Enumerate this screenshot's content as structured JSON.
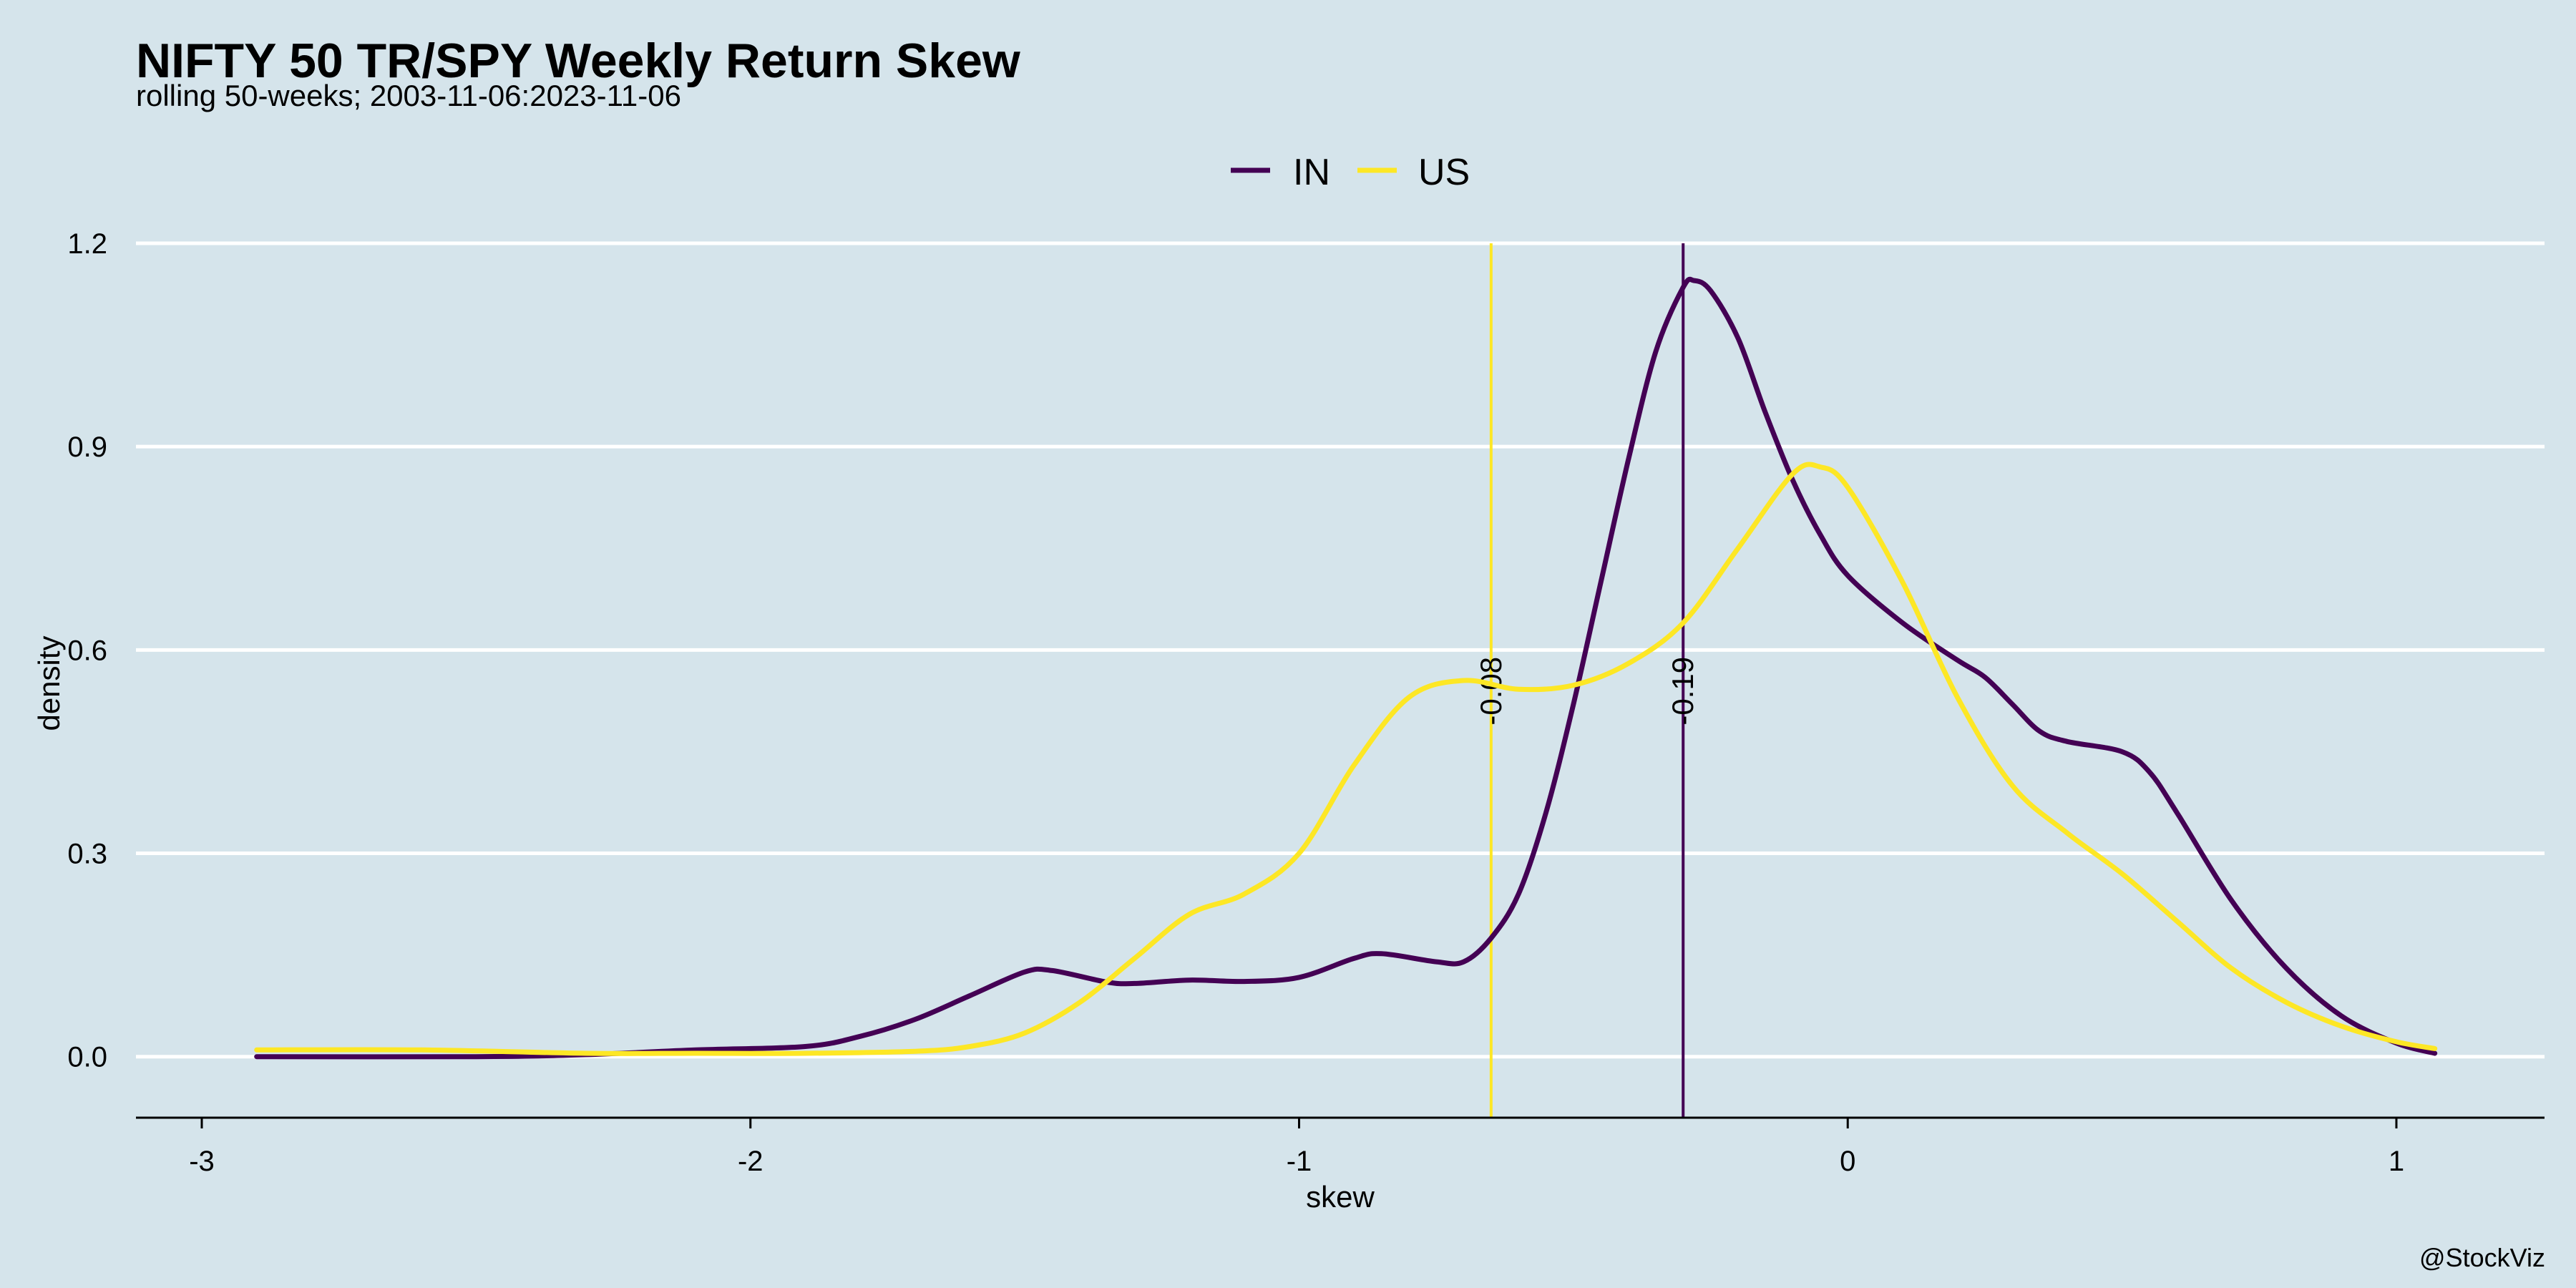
{
  "chart_data": {
    "type": "line",
    "title": "NIFTY 50 TR/SPY Weekly Return Skew",
    "subtitle": "rolling 50-weeks; 2003-11-06:2023-11-06",
    "xlabel": "skew",
    "ylabel": "density",
    "caption": "@StockViz",
    "xlim": [
      -3.12,
      1.27
    ],
    "ylim": [
      -0.09,
      1.2
    ],
    "x_ticks": [
      -3,
      -2,
      -1,
      0,
      1
    ],
    "y_ticks": [
      0.0,
      0.3,
      0.6,
      0.9,
      1.2
    ],
    "x_tick_labels": [
      "-3",
      "-2",
      "-1",
      "0",
      "1"
    ],
    "y_tick_labels": [
      "0.0",
      "0.3",
      "0.6",
      "0.9",
      "1.2"
    ],
    "grid": "horizontal",
    "legend_position": "top",
    "legend": [
      {
        "name": "IN",
        "color": "#440154"
      },
      {
        "name": "US",
        "color": "#fde725"
      }
    ],
    "series": [
      {
        "name": "IN",
        "color": "#440154",
        "points": [
          [
            -2.9,
            0.0
          ],
          [
            -2.5,
            0.0
          ],
          [
            -2.3,
            0.003
          ],
          [
            -2.1,
            0.01
          ],
          [
            -1.9,
            0.015
          ],
          [
            -1.8,
            0.03
          ],
          [
            -1.7,
            0.055
          ],
          [
            -1.6,
            0.09
          ],
          [
            -1.5,
            0.125
          ],
          [
            -1.45,
            0.127
          ],
          [
            -1.35,
            0.11
          ],
          [
            -1.3,
            0.108
          ],
          [
            -1.2,
            0.113
          ],
          [
            -1.1,
            0.111
          ],
          [
            -1.0,
            0.117
          ],
          [
            -0.9,
            0.145
          ],
          [
            -0.85,
            0.152
          ],
          [
            -0.75,
            0.14
          ],
          [
            -0.7,
            0.14
          ],
          [
            -0.65,
            0.175
          ],
          [
            -0.6,
            0.24
          ],
          [
            -0.55,
            0.36
          ],
          [
            -0.5,
            0.52
          ],
          [
            -0.45,
            0.7
          ],
          [
            -0.4,
            0.88
          ],
          [
            -0.35,
            1.04
          ],
          [
            -0.3,
            1.135
          ],
          [
            -0.28,
            1.145
          ],
          [
            -0.25,
            1.13
          ],
          [
            -0.2,
            1.06
          ],
          [
            -0.15,
            0.95
          ],
          [
            -0.1,
            0.85
          ],
          [
            -0.05,
            0.77
          ],
          [
            0.0,
            0.71
          ],
          [
            0.1,
            0.64
          ],
          [
            0.2,
            0.585
          ],
          [
            0.25,
            0.56
          ],
          [
            0.3,
            0.52
          ],
          [
            0.35,
            0.48
          ],
          [
            0.4,
            0.465
          ],
          [
            0.5,
            0.45
          ],
          [
            0.55,
            0.42
          ],
          [
            0.6,
            0.36
          ],
          [
            0.7,
            0.23
          ],
          [
            0.8,
            0.13
          ],
          [
            0.9,
            0.06
          ],
          [
            1.0,
            0.02
          ],
          [
            1.07,
            0.005
          ]
        ],
        "marker": {
          "x": -0.3,
          "label": "-0.19"
        }
      },
      {
        "name": "US",
        "color": "#fde725",
        "points": [
          [
            -2.9,
            0.01
          ],
          [
            -2.6,
            0.01
          ],
          [
            -2.3,
            0.005
          ],
          [
            -2.1,
            0.005
          ],
          [
            -1.9,
            0.005
          ],
          [
            -1.7,
            0.008
          ],
          [
            -1.6,
            0.015
          ],
          [
            -1.5,
            0.035
          ],
          [
            -1.4,
            0.08
          ],
          [
            -1.3,
            0.145
          ],
          [
            -1.2,
            0.21
          ],
          [
            -1.1,
            0.24
          ],
          [
            -1.0,
            0.3
          ],
          [
            -0.9,
            0.43
          ],
          [
            -0.8,
            0.53
          ],
          [
            -0.7,
            0.555
          ],
          [
            -0.6,
            0.542
          ],
          [
            -0.5,
            0.548
          ],
          [
            -0.4,
            0.58
          ],
          [
            -0.3,
            0.64
          ],
          [
            -0.2,
            0.75
          ],
          [
            -0.1,
            0.86
          ],
          [
            -0.05,
            0.87
          ],
          [
            0.0,
            0.84
          ],
          [
            0.1,
            0.7
          ],
          [
            0.2,
            0.53
          ],
          [
            0.3,
            0.4
          ],
          [
            0.4,
            0.33
          ],
          [
            0.5,
            0.27
          ],
          [
            0.6,
            0.2
          ],
          [
            0.7,
            0.13
          ],
          [
            0.8,
            0.08
          ],
          [
            0.9,
            0.045
          ],
          [
            1.0,
            0.022
          ],
          [
            1.07,
            0.012
          ]
        ],
        "marker": {
          "x": -0.65,
          "label": "-0.08"
        }
      }
    ]
  }
}
